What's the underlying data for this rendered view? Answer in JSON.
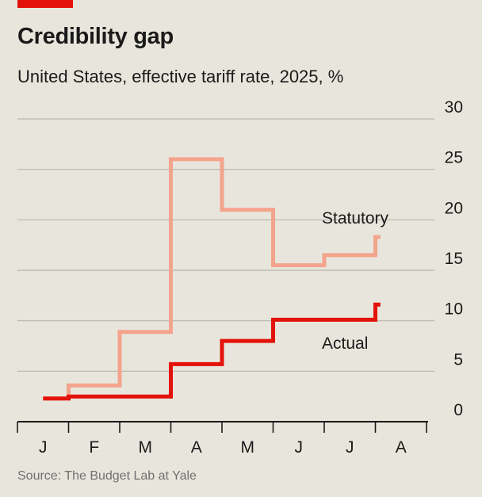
{
  "header": {
    "title": "Credibility gap",
    "subtitle": "United States, effective tariff rate, 2025, %"
  },
  "source": "Source: The Budget Lab at Yale",
  "colors": {
    "accent": "#e3120b",
    "actual": "#e3120b",
    "statutory": "#f4a48c",
    "grid": "#b7b5ad",
    "axis": "#1a1a1a",
    "background": "#e8e6dc"
  },
  "chart_data": {
    "type": "line",
    "title": "Credibility gap",
    "subtitle": "United States, effective tariff rate, 2025, %",
    "xlabel": "",
    "ylabel": "",
    "ylim": [
      0,
      30
    ],
    "yticks": [
      "0",
      "5",
      "10",
      "15",
      "20",
      "25",
      "30"
    ],
    "x_categories": [
      "J",
      "F",
      "M",
      "A",
      "M",
      "J",
      "J",
      "A"
    ],
    "x_unit": "month (J=January ... A=August, 2025)",
    "step": true,
    "grid": true,
    "y_axis_side": "right",
    "series": [
      {
        "name": "Statutory",
        "points": [
          {
            "x": 0.5,
            "y": 2.3
          },
          {
            "x": 1.0,
            "y": 2.3
          },
          {
            "x": 1.0,
            "y": 3.6
          },
          {
            "x": 2.0,
            "y": 3.6
          },
          {
            "x": 2.0,
            "y": 8.9
          },
          {
            "x": 3.0,
            "y": 8.9
          },
          {
            "x": 3.0,
            "y": 26.0
          },
          {
            "x": 4.0,
            "y": 26.0
          },
          {
            "x": 4.0,
            "y": 21.0
          },
          {
            "x": 5.0,
            "y": 21.0
          },
          {
            "x": 5.0,
            "y": 15.5
          },
          {
            "x": 6.0,
            "y": 15.5
          },
          {
            "x": 6.0,
            "y": 16.5
          },
          {
            "x": 7.0,
            "y": 16.5
          },
          {
            "x": 7.0,
            "y": 18.3
          },
          {
            "x": 7.1,
            "y": 18.3
          }
        ]
      },
      {
        "name": "Actual",
        "points": [
          {
            "x": 0.5,
            "y": 2.3
          },
          {
            "x": 1.0,
            "y": 2.3
          },
          {
            "x": 1.0,
            "y": 2.5
          },
          {
            "x": 3.0,
            "y": 2.5
          },
          {
            "x": 3.0,
            "y": 5.7
          },
          {
            "x": 4.0,
            "y": 5.7
          },
          {
            "x": 4.0,
            "y": 8.0
          },
          {
            "x": 5.0,
            "y": 8.0
          },
          {
            "x": 5.0,
            "y": 10.1
          },
          {
            "x": 7.0,
            "y": 10.1
          },
          {
            "x": 7.0,
            "y": 11.6
          },
          {
            "x": 7.1,
            "y": 11.6
          }
        ]
      }
    ],
    "annotations": [
      {
        "text": "Statutory",
        "series": "Statutory"
      },
      {
        "text": "Actual",
        "series": "Actual"
      }
    ]
  }
}
